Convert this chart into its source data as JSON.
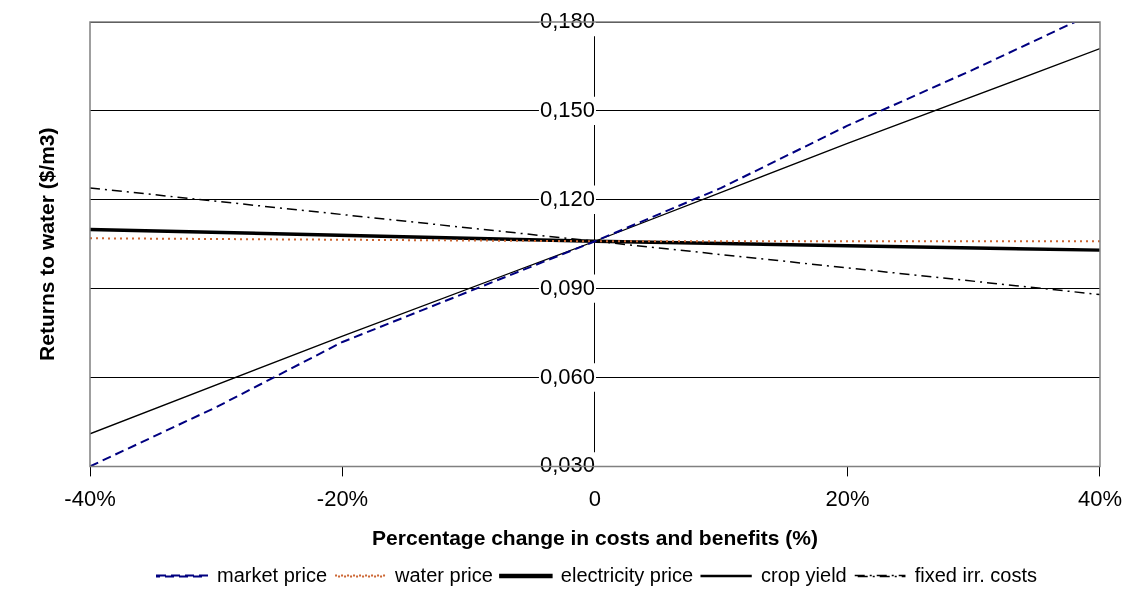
{
  "chart_data": {
    "type": "line",
    "xlabel": "Percentage change in costs and benefits (%)",
    "ylabel": "Returns to water ($/m3)",
    "xlim": [
      -40,
      40
    ],
    "xticks": [
      {
        "value": -40,
        "label": "-40%"
      },
      {
        "value": -20,
        "label": "-20%"
      },
      {
        "value": 0,
        "label": "0"
      },
      {
        "value": 20,
        "label": "20%"
      },
      {
        "value": 40,
        "label": "40%"
      }
    ],
    "ylim": [
      0.03,
      0.18
    ],
    "yticks": [
      {
        "value": 0.03,
        "label": "0,030"
      },
      {
        "value": 0.06,
        "label": "0,060"
      },
      {
        "value": 0.09,
        "label": "0,090"
      },
      {
        "value": 0.12,
        "label": "0,120"
      },
      {
        "value": 0.15,
        "label": "0,150"
      },
      {
        "value": 0.18,
        "label": "0,180"
      }
    ],
    "grid": "y",
    "legend": "bottom",
    "marker": "none",
    "series": [
      {
        "name": "market price",
        "color": "#000080",
        "line_style": "dashed",
        "x": [
          -40,
          -30,
          -20,
          -10,
          0,
          10,
          20,
          30,
          38
        ],
        "values": [
          0.03,
          0.05,
          0.072,
          0.089,
          0.106,
          0.124,
          0.145,
          0.164,
          0.18
        ]
      },
      {
        "name": "water price",
        "color": "#cc6633",
        "line_style": "dotted",
        "x": [
          -40,
          0,
          40
        ],
        "values": [
          0.107,
          0.106,
          0.106
        ]
      },
      {
        "name": "electricity price",
        "color": "#000000",
        "line_style": "solid",
        "x": [
          -40,
          0,
          40
        ],
        "values": [
          0.11,
          0.106,
          0.103
        ]
      },
      {
        "name": "crop yield",
        "color": "#000000",
        "line_style": "solid",
        "x": [
          -40,
          -20,
          0,
          20,
          40
        ],
        "values": [
          0.041,
          0.074,
          0.106,
          0.139,
          0.171
        ]
      },
      {
        "name": "fixed irr. costs",
        "color": "#000000",
        "line_style": "dashdot",
        "x": [
          -40,
          -20,
          0,
          20,
          40
        ],
        "values": [
          0.124,
          0.115,
          0.106,
          0.097,
          0.088
        ]
      }
    ]
  }
}
